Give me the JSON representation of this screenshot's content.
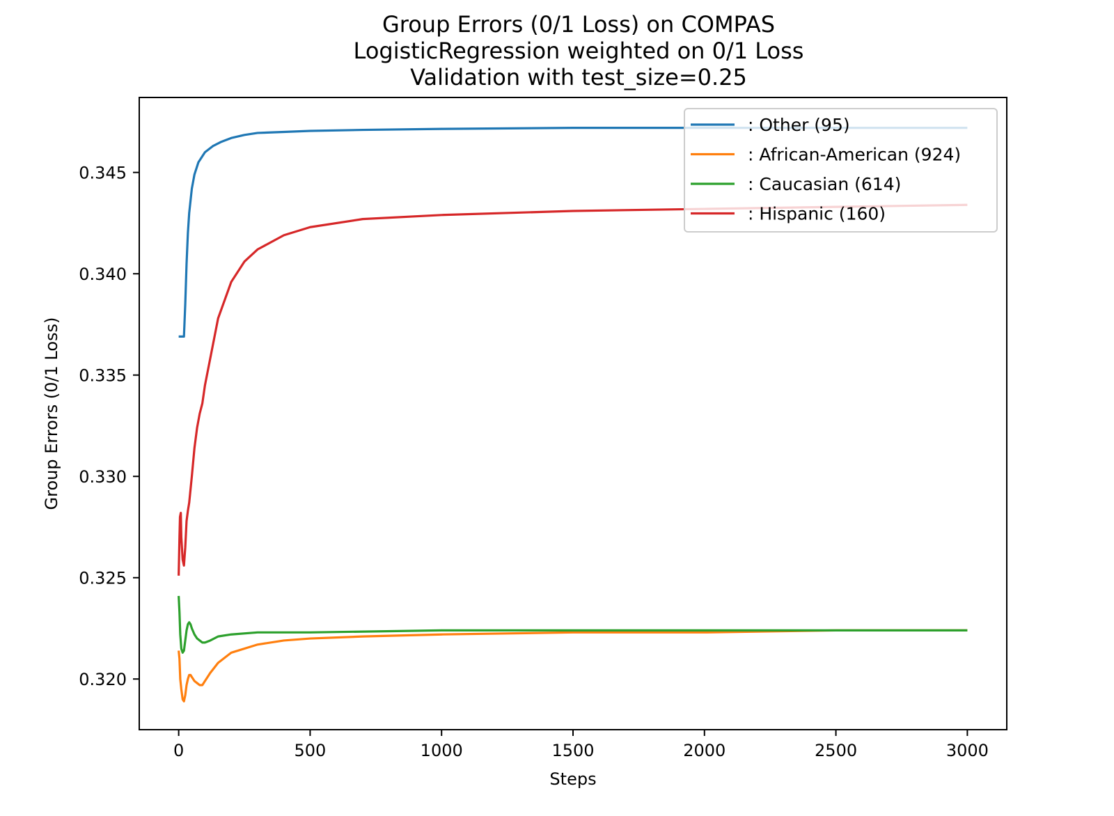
{
  "chart_data": {
    "type": "line",
    "title": [
      "Group Errors (0/1 Loss) on COMPAS",
      "LogisticRegression weighted on 0/1 Loss",
      "Validation with test_size=0.25"
    ],
    "xlabel": "Steps",
    "ylabel": "Group Errors (0/1 Loss)",
    "xlim": [
      -150,
      3150
    ],
    "ylim": [
      0.3175,
      0.3487
    ],
    "xticks": [
      0,
      500,
      1000,
      1500,
      2000,
      2500,
      3000
    ],
    "xtick_labels": [
      "0",
      "500",
      "1000",
      "1500",
      "2000",
      "2500",
      "3000"
    ],
    "yticks": [
      0.32,
      0.325,
      0.33,
      0.335,
      0.34,
      0.345
    ],
    "ytick_labels": [
      "0.320",
      "0.325",
      "0.330",
      "0.335",
      "0.340",
      "0.345"
    ],
    "grid": false,
    "legend_position": "top-right",
    "series": [
      {
        "name": ": Other  (95)",
        "color": "#1f77b4",
        "x": [
          0,
          10,
          20,
          25,
          30,
          35,
          40,
          50,
          60,
          75,
          100,
          130,
          160,
          200,
          250,
          300,
          400,
          500,
          700,
          1000,
          1500,
          2000,
          2500,
          3000
        ],
        "y": [
          0.3369,
          0.3369,
          0.3369,
          0.3385,
          0.3405,
          0.342,
          0.343,
          0.3442,
          0.3449,
          0.3455,
          0.346,
          0.3463,
          0.3465,
          0.3467,
          0.34685,
          0.34695,
          0.347,
          0.34705,
          0.3471,
          0.34715,
          0.3472,
          0.3472,
          0.3472,
          0.3472
        ]
      },
      {
        "name": ": African-American  (924)",
        "color": "#ff7f0e",
        "x": [
          0,
          3,
          6,
          10,
          15,
          20,
          25,
          30,
          35,
          40,
          45,
          50,
          60,
          70,
          80,
          90,
          100,
          120,
          150,
          200,
          300,
          400,
          500,
          700,
          1000,
          1500,
          2000,
          2500,
          3000
        ],
        "y": [
          0.3214,
          0.321,
          0.32,
          0.3195,
          0.319,
          0.3189,
          0.3192,
          0.3197,
          0.32,
          0.3202,
          0.3202,
          0.3201,
          0.3199,
          0.3198,
          0.3197,
          0.3197,
          0.3199,
          0.3203,
          0.3208,
          0.3213,
          0.3217,
          0.3219,
          0.322,
          0.3221,
          0.3222,
          0.3223,
          0.3223,
          0.3224,
          0.3224
        ]
      },
      {
        "name": ": Caucasian  (614)",
        "color": "#2ca02c",
        "x": [
          0,
          3,
          6,
          10,
          15,
          20,
          25,
          30,
          35,
          40,
          45,
          50,
          60,
          70,
          80,
          90,
          100,
          120,
          150,
          200,
          300,
          500,
          1000,
          1500,
          2000,
          2500,
          3000
        ],
        "y": [
          0.3241,
          0.3233,
          0.3222,
          0.3215,
          0.3213,
          0.3214,
          0.3219,
          0.3224,
          0.3227,
          0.3228,
          0.3227,
          0.3225,
          0.3222,
          0.322,
          0.3219,
          0.3218,
          0.3218,
          0.3219,
          0.3221,
          0.3222,
          0.3223,
          0.3223,
          0.3224,
          0.3224,
          0.3224,
          0.3224,
          0.3224
        ]
      },
      {
        "name": ": Hispanic  (160)",
        "color": "#d62728",
        "x": [
          0,
          3,
          5,
          8,
          10,
          15,
          20,
          25,
          30,
          35,
          40,
          50,
          60,
          70,
          80,
          90,
          100,
          150,
          200,
          250,
          300,
          400,
          500,
          700,
          1000,
          1500,
          2000,
          2500,
          3000
        ],
        "y": [
          0.3251,
          0.327,
          0.328,
          0.3282,
          0.327,
          0.3259,
          0.3256,
          0.3265,
          0.3278,
          0.3283,
          0.3287,
          0.33,
          0.3314,
          0.3324,
          0.3331,
          0.3336,
          0.3345,
          0.3378,
          0.3396,
          0.3406,
          0.3412,
          0.3419,
          0.3423,
          0.3427,
          0.3429,
          0.3431,
          0.3432,
          0.3433,
          0.3434
        ]
      }
    ]
  }
}
